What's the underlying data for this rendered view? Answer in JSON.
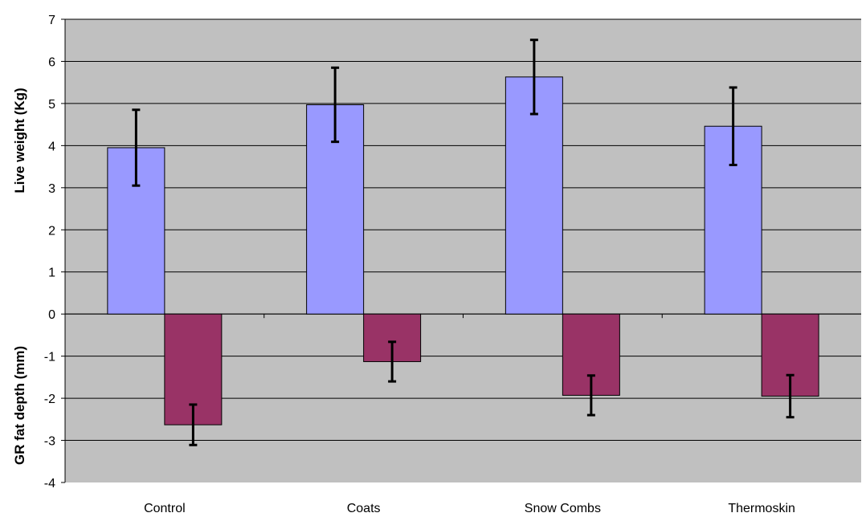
{
  "chart_data": {
    "type": "bar",
    "title": "",
    "categories": [
      "Control",
      "Coats",
      "Snow Combs",
      "Thermoskin"
    ],
    "series": [
      {
        "values": [
          3.95,
          4.97,
          5.63,
          4.46
        ],
        "errors": [
          0.9,
          0.88,
          0.88,
          0.92
        ],
        "color": "#9999ff"
      },
      {
        "values": [
          -2.63,
          -1.13,
          -1.93,
          -1.95
        ],
        "errors": [
          0.48,
          0.47,
          0.47,
          0.5
        ],
        "color": "#993366"
      }
    ],
    "ylabel_top": "Live weight (Kg)",
    "ylabel_bottom": "GR fat depth (mm)",
    "ylim": [
      -4,
      7
    ],
    "yticks": [
      "-4",
      "-3",
      "-2",
      "-1",
      "0",
      "1",
      "2",
      "3",
      "4",
      "5",
      "6",
      "7"
    ],
    "grid": true,
    "plot_background": "#c0c0c0",
    "legend": "none"
  }
}
